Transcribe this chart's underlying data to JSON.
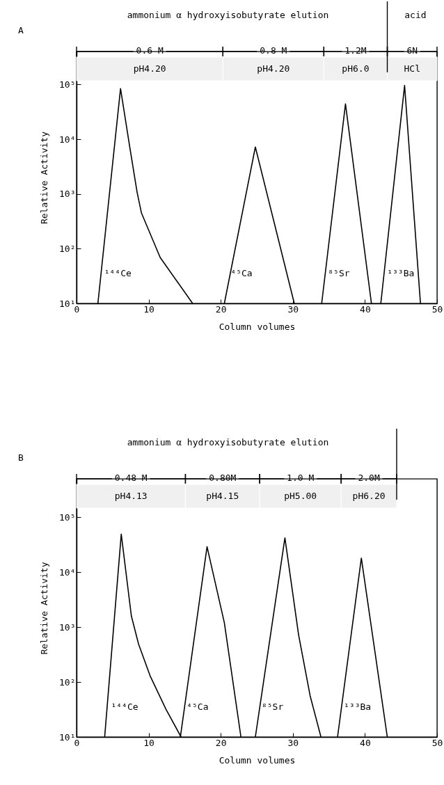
{
  "chart_data": [
    {
      "type": "line",
      "title": "A",
      "xlabel": "Column volumes",
      "ylabel": "Relative Activity",
      "log": true,
      "xlim": [
        0,
        50
      ],
      "xticks": [
        0,
        10,
        20,
        30,
        40,
        50
      ],
      "ylim": [
        10,
        400000
      ],
      "yticks": [
        {
          "value": 10,
          "label": "10¹"
        },
        {
          "value": 100,
          "label": "10²"
        },
        {
          "value": 1000,
          "label": "10³"
        },
        {
          "value": 10000,
          "label": "10⁴"
        },
        {
          "value": 100000,
          "label": "10⁵"
        }
      ],
      "series": [
        {
          "name": "¹⁴⁴Ce",
          "color": "#000000",
          "x": [
            2.96,
            6.1,
            7.4,
            8.4,
            9.0,
            11.6,
            16.1
          ],
          "values": [
            10,
            84000,
            6900,
            1070,
            450,
            69,
            10
          ]
        },
        {
          "name": "⁴⁵Ca",
          "color": "#000000",
          "x": [
            20.5,
            24.8,
            30.2
          ],
          "values": [
            10,
            7200,
            10
          ]
        },
        {
          "name": "⁸⁵Sr",
          "color": "#000000",
          "x": [
            34.0,
            37.3,
            40.9
          ],
          "values": [
            10,
            44000,
            10
          ]
        },
        {
          "name": "¹³³Ba",
          "color": "#000000",
          "x": [
            42.2,
            45.5,
            47.7
          ],
          "values": [
            10,
            96000,
            10
          ]
        }
      ],
      "bands": [
        {
          "axis": "x",
          "from": 0,
          "to": 20.3,
          "label": "0.6 M\npH4.20"
        },
        {
          "axis": "x",
          "from": 20.3,
          "to": 34.3,
          "label": "0.8 M\npH4.20"
        },
        {
          "axis": "x",
          "from": 34.3,
          "to": 43.1,
          "label": "1.2M\npH6.0"
        },
        {
          "axis": "x",
          "from": 43.1,
          "to": 50,
          "label": "6N\nHCl"
        }
      ],
      "ref_lines": [
        {
          "axis": "x",
          "value": 43.1
        }
      ],
      "annotations": [
        "ammonium α hydroxyisobutyrate elution",
        "acid"
      ]
    },
    {
      "type": "line",
      "title": "B",
      "xlabel": "Column volumes",
      "ylabel": "Relative Activity",
      "log": true,
      "xlim": [
        0,
        50
      ],
      "xticks": [
        0,
        10,
        20,
        30,
        40,
        50
      ],
      "ylim": [
        10,
        500000
      ],
      "yticks": [
        {
          "value": 10,
          "label": "10¹"
        },
        {
          "value": 100,
          "label": "10²"
        },
        {
          "value": 1000,
          "label": "10³"
        },
        {
          "value": 10000,
          "label": "10⁴"
        },
        {
          "value": 100000,
          "label": "10⁵"
        }
      ],
      "series": [
        {
          "name": "¹⁴⁴Ce",
          "color": "#000000",
          "x": [
            3.9,
            6.2,
            7.6,
            8.6,
            10.2,
            12.4,
            14.5
          ],
          "values": [
            10,
            49000,
            1600,
            490,
            130,
            32,
            10
          ]
        },
        {
          "name": "⁴⁵Ca",
          "color": "#000000",
          "x": [
            14.4,
            18.1,
            20.5,
            22.8
          ],
          "values": [
            10,
            29000,
            1200,
            10
          ]
        },
        {
          "name": "⁸⁵Sr",
          "color": "#000000",
          "x": [
            24.8,
            28.9,
            30.8,
            32.4,
            33.9
          ],
          "values": [
            10,
            42000,
            720,
            56,
            10
          ]
        },
        {
          "name": "¹³³Ba",
          "color": "#000000",
          "x": [
            36.2,
            39.5,
            43.1
          ],
          "values": [
            10,
            18000,
            10
          ]
        }
      ],
      "bands": [
        {
          "axis": "x",
          "from": 0,
          "to": 15.1,
          "label": "0.48 M\npH4.13"
        },
        {
          "axis": "x",
          "from": 15.1,
          "to": 25.4,
          "label": "0.80M\npH4.15"
        },
        {
          "axis": "x",
          "from": 25.4,
          "to": 36.7,
          "label": "1.0 M\npH5.00"
        },
        {
          "axis": "x",
          "from": 36.7,
          "to": 44.4,
          "label": "2.0M\npH6.20"
        }
      ],
      "ref_lines": [
        {
          "axis": "x",
          "value": 44.4
        }
      ],
      "annotations": [
        "ammonium α hydroxyisobutyrate elution"
      ]
    }
  ]
}
